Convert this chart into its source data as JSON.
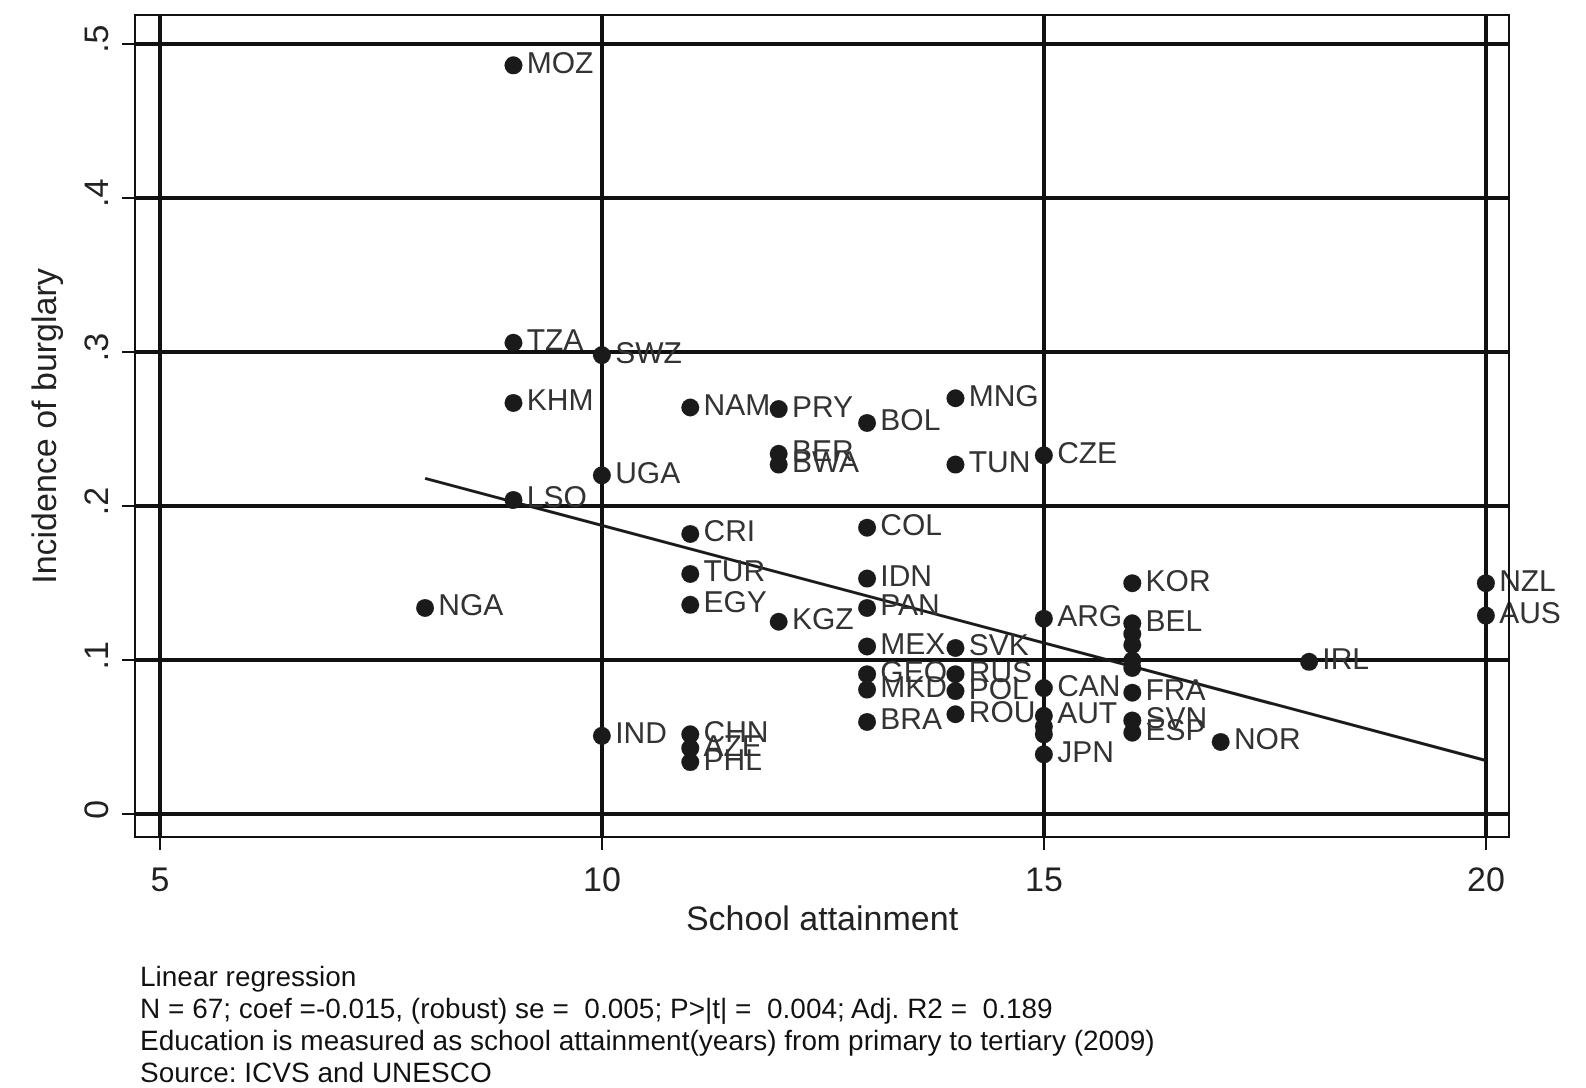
{
  "chart_data": {
    "type": "scatter",
    "xlabel": "School attainment",
    "ylabel": "Incidence of burglary",
    "xlim": [
      4.73,
      20.25
    ],
    "ylim": [
      -0.014,
      0.518
    ],
    "xticks": [
      5,
      10,
      15,
      20
    ],
    "yticks": [
      {
        "value": 0,
        "label": "0"
      },
      {
        "value": 0.1,
        "label": ".1"
      },
      {
        "value": 0.2,
        "label": ".2"
      },
      {
        "value": 0.3,
        "label": ".3"
      },
      {
        "value": 0.4,
        "label": ".4"
      },
      {
        "value": 0.5,
        "label": ".5"
      }
    ],
    "grid": true,
    "series": [
      {
        "color": "#1a1a1a",
        "marker": "circle",
        "x": [
          9,
          9,
          10,
          9,
          11,
          12,
          13,
          14,
          12,
          12,
          14,
          15,
          10,
          9,
          13,
          11,
          11,
          11,
          12,
          8,
          10,
          11,
          11,
          11,
          13,
          13,
          13,
          13,
          13,
          13,
          14,
          14,
          14,
          14,
          15,
          15,
          15,
          15,
          15,
          15,
          16,
          16,
          16,
          16,
          16,
          16,
          16,
          16,
          16,
          17,
          18,
          20,
          20
        ],
        "values": [
          0.486,
          0.306,
          0.298,
          0.267,
          0.264,
          0.263,
          0.254,
          0.27,
          0.234,
          0.227,
          0.227,
          0.233,
          0.22,
          0.204,
          0.186,
          0.182,
          0.156,
          0.136,
          0.125,
          0.134,
          0.051,
          0.052,
          0.043,
          0.034,
          0.153,
          0.134,
          0.109,
          0.091,
          0.081,
          0.06,
          0.108,
          0.091,
          0.08,
          0.065,
          0.127,
          0.082,
          0.064,
          0.057,
          0.052,
          0.039,
          0.15,
          0.124,
          0.117,
          0.11,
          0.1,
          0.095,
          0.079,
          0.061,
          0.053,
          0.047,
          0.099,
          0.15,
          0.129
        ],
        "value_labels": [
          "MOZ",
          "TZA",
          "SWZ",
          "KHM",
          "NAM",
          "PRY",
          "BOL",
          "MNG",
          "BER",
          "BWA",
          "TUN",
          "CZE",
          "UGA",
          "LSO",
          "COL",
          "CRI",
          "TUR",
          "EGY",
          "KGZ",
          "NGA",
          "IND",
          "CHN",
          "AZE",
          "PHL",
          "IDN",
          "PAN",
          "MEX",
          "GEO",
          "MKD",
          "BRA",
          "SVK",
          "RUS",
          "POL",
          "ROU",
          "ARG",
          "CAN",
          "AUT",
          null,
          null,
          "JPN",
          "KOR",
          "BEL",
          null,
          null,
          null,
          null,
          "FRA",
          "SVN",
          "ESP",
          "NOR",
          "IRL",
          "NZL",
          "AUS"
        ]
      },
      {
        "type": "line",
        "color": "#1a1a1a",
        "marker": "none",
        "line_style": "solid",
        "x": [
          8,
          20
        ],
        "values": [
          0.218,
          0.035
        ]
      }
    ],
    "annotations": [
      "Linear regression",
      "N = 67; coef =-0.015, (robust) se =  0.005; P>|t| =  0.004; Adj. R2 =  0.189",
      "Education is measured as school attainment(years) from primary to tertiary (2009)",
      "Source: ICVS and UNESCO"
    ]
  }
}
